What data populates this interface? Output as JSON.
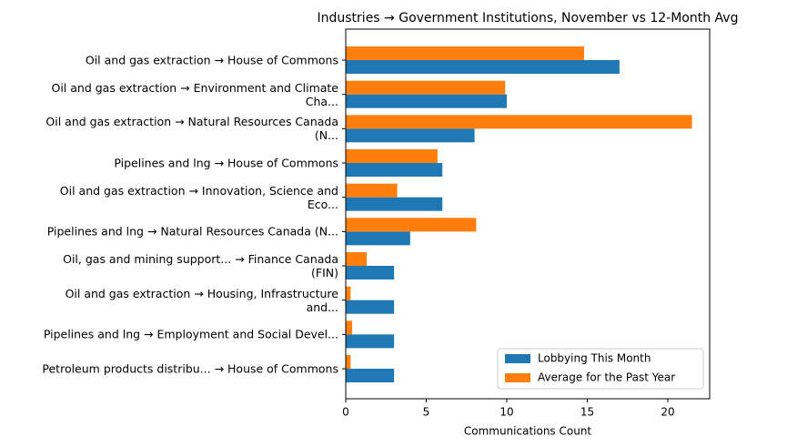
{
  "chart_data": {
    "type": "barh",
    "title": "Industries → Government Institutions, November vs 12-Month Avg",
    "x_label": "Communications Count",
    "categories": [
      "Oil and gas extraction → House of Commons",
      "Oil and gas extraction → Environment and Climate\nCha...",
      "Oil and gas extraction → Natural Resources Canada\n(N...",
      "Pipelines and lng → House of Commons",
      "Oil and gas extraction → Innovation, Science and\nEco...",
      "Pipelines and lng → Natural Resources Canada (N...",
      "Oil, gas and mining support... → Finance Canada\n(FIN)",
      "Oil and gas extraction → Housing, Infrastructure\nand...",
      "Pipelines and lng → Employment and Social Devel...",
      "Petroleum products distribu... → House of Commons"
    ],
    "series": [
      {
        "name": "Lobbying This Month",
        "color": "#1f77b4",
        "values": [
          17,
          10,
          8,
          6,
          6,
          4,
          3,
          3,
          3,
          3
        ]
      },
      {
        "name": "Average for the Past Year",
        "color": "#ff7f0e",
        "values": [
          14.8,
          9.9,
          21.5,
          5.7,
          3.2,
          8.1,
          1.3,
          0.3,
          0.4,
          0.3
        ]
      }
    ],
    "xlim": [
      0,
      22.6
    ],
    "xticks": [
      0,
      5,
      10,
      15,
      20
    ],
    "legend": "lower right"
  }
}
